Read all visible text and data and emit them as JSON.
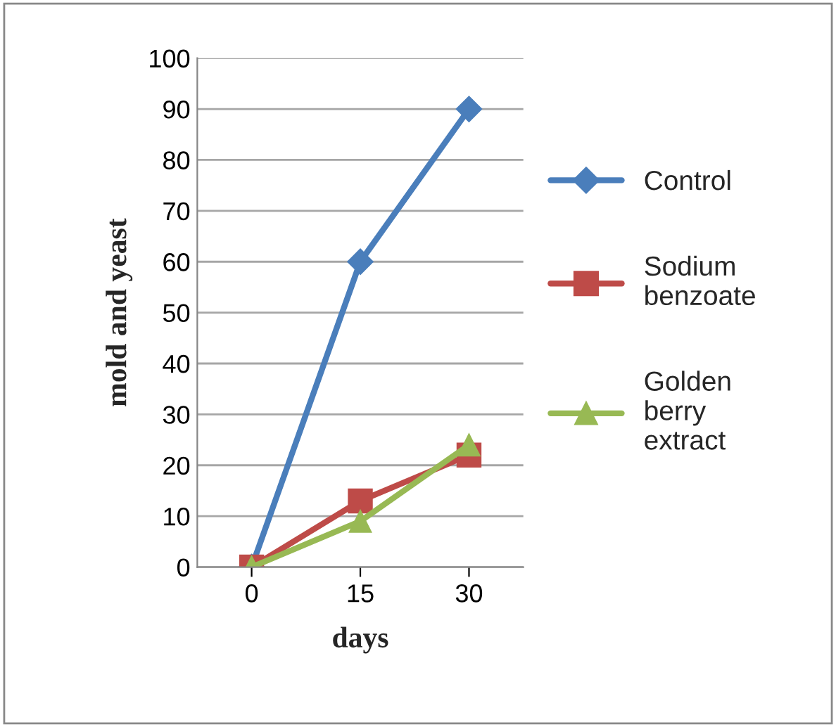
{
  "chart_data": {
    "type": "line",
    "xlabel": "days",
    "ylabel": "mold and yeast",
    "categories": [
      "0",
      "15",
      "30"
    ],
    "ylim": [
      0,
      100
    ],
    "yticks": [
      0,
      10,
      20,
      30,
      40,
      50,
      60,
      70,
      80,
      90,
      100
    ],
    "grid": "y",
    "legend": "right",
    "line_style": "solid",
    "series": [
      {
        "name": "Control",
        "color": "#4a7ebb",
        "marker": "diamond",
        "values": [
          0,
          60,
          90
        ]
      },
      {
        "name": "Sodium\nbenzoate",
        "color": "#be4b48",
        "marker": "square",
        "values": [
          0,
          13,
          22
        ]
      },
      {
        "name": "Golden\nberry\nextract",
        "color": "#98b954",
        "marker": "triangle",
        "values": [
          0,
          9,
          24
        ]
      }
    ]
  }
}
